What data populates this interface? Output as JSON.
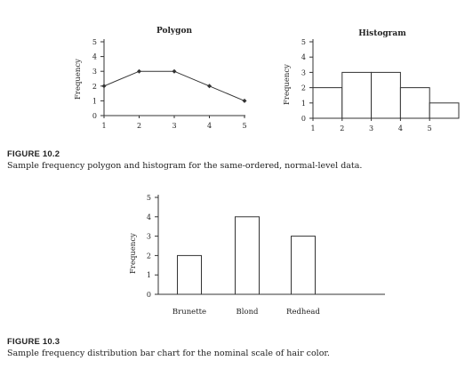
{
  "charts": [
    {
      "type": "line",
      "title": "Polygon",
      "ylabel": "Frequency",
      "x": [
        1,
        2,
        3,
        4,
        5
      ],
      "values": [
        2,
        3,
        3,
        2,
        1
      ],
      "xticks": [
        "1",
        "2",
        "3",
        "4",
        "5"
      ],
      "yticks": [
        "0",
        "1",
        "2",
        "3",
        "4",
        "5"
      ],
      "ylim": [
        0,
        5
      ]
    },
    {
      "type": "bar",
      "title": "Histogram",
      "ylabel": "Frequency",
      "x": [
        1,
        2,
        3,
        4,
        5
      ],
      "values": [
        2,
        3,
        3,
        2,
        1
      ],
      "xticks": [
        "1",
        "2",
        "3",
        "4",
        "5"
      ],
      "yticks": [
        "0",
        "1",
        "2",
        "3",
        "4",
        "5"
      ],
      "ylim": [
        0,
        5
      ]
    },
    {
      "type": "bar",
      "title": "",
      "ylabel": "Frequency",
      "categories": [
        "Brunette",
        "Blond",
        "Redhead"
      ],
      "values": [
        2,
        4,
        3
      ],
      "yticks": [
        "0",
        "1",
        "2",
        "3",
        "4",
        "5"
      ],
      "ylim": [
        0,
        5
      ]
    }
  ],
  "captions": {
    "fig1_label": "FIGURE 10.2",
    "fig1_text": "Sample frequency polygon and histogram for the same-ordered, normal-level data.",
    "fig2_label": "FIGURE 10.3",
    "fig2_text": "Sample frequency distribution bar chart for the nominal scale of hair color."
  }
}
